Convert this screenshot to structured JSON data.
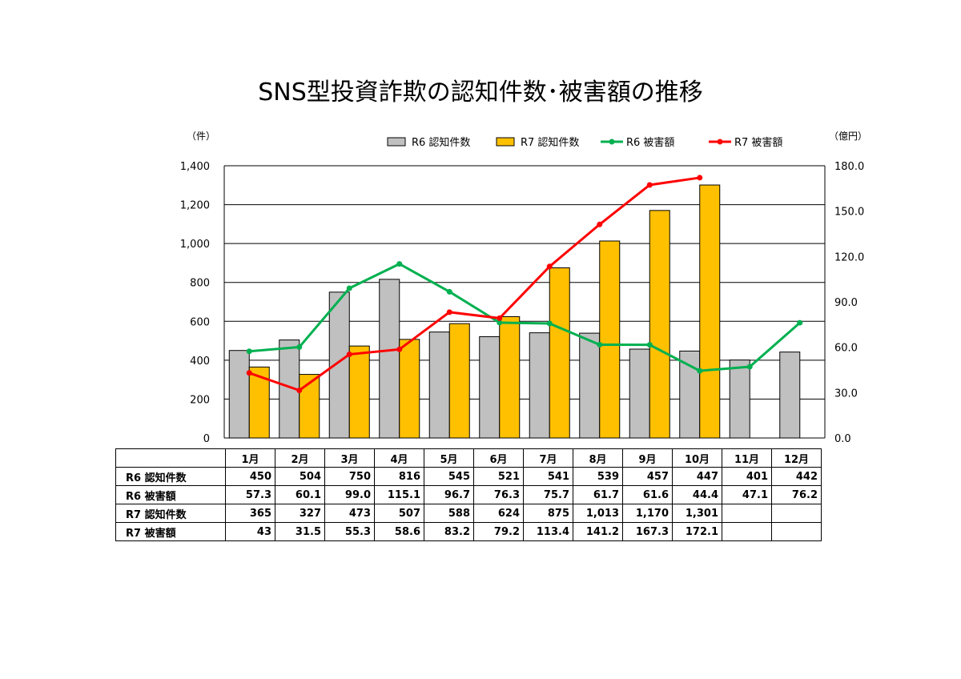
{
  "chart_data": {
    "type": "bar",
    "title": "SNS型投資詐欺の認知件数･被害額の推移",
    "categories": [
      "1月",
      "2月",
      "3月",
      "4月",
      "5月",
      "6月",
      "7月",
      "8月",
      "9月",
      "10月",
      "11月",
      "12月"
    ],
    "y_left": {
      "unit": "（件）",
      "ylim": [
        0,
        1400
      ],
      "ticks": [
        "0",
        "200",
        "400",
        "600",
        "800",
        "1,000",
        "1,200",
        "1,400"
      ]
    },
    "y_right": {
      "unit": "（億円）",
      "ylim": [
        0,
        180
      ],
      "ticks": [
        "0.0",
        "30.0",
        "60.0",
        "90.0",
        "120.0",
        "150.0",
        "180.0"
      ]
    },
    "grid": true,
    "legend": "top",
    "series": [
      {
        "name": "R6 認知件数",
        "kind": "bar",
        "axis": "left",
        "color": "#c0c0c0",
        "values": [
          450,
          504,
          750,
          816,
          545,
          521,
          541,
          539,
          457,
          447,
          401,
          442
        ]
      },
      {
        "name": "R7 認知件数",
        "kind": "bar",
        "axis": "left",
        "color": "#ffc000",
        "values": [
          365,
          327,
          473,
          507,
          588,
          624,
          875,
          1013,
          1170,
          1301,
          null,
          null
        ]
      },
      {
        "name": "R6 被害額",
        "kind": "line",
        "axis": "right",
        "color": "#00b050",
        "values": [
          57.3,
          60.1,
          99.0,
          115.1,
          96.7,
          76.3,
          75.7,
          61.7,
          61.6,
          44.4,
          47.1,
          76.2
        ]
      },
      {
        "name": "R7 被害額",
        "kind": "line",
        "axis": "right",
        "color": "#ff0000",
        "values": [
          43,
          31.5,
          55.3,
          58.6,
          83.2,
          79.2,
          113.4,
          141.2,
          167.3,
          172.1,
          null,
          null
        ]
      }
    ]
  },
  "table": {
    "headers": [
      "1月",
      "2月",
      "3月",
      "4月",
      "5月",
      "6月",
      "7月",
      "8月",
      "9月",
      "10月",
      "11月",
      "12月"
    ],
    "rows": [
      {
        "label": "R6 認知件数",
        "cells": [
          "450",
          "504",
          "750",
          "816",
          "545",
          "521",
          "541",
          "539",
          "457",
          "447",
          "401",
          "442"
        ]
      },
      {
        "label": "R6 被害額",
        "cells": [
          "57.3",
          "60.1",
          "99.0",
          "115.1",
          "96.7",
          "76.3",
          "75.7",
          "61.7",
          "61.6",
          "44.4",
          "47.1",
          "76.2"
        ]
      },
      {
        "label": "R7 認知件数",
        "cells": [
          "365",
          "327",
          "473",
          "507",
          "588",
          "624",
          "875",
          "1,013",
          "1,170",
          "1,301",
          "",
          ""
        ]
      },
      {
        "label": "R7 被害額",
        "cells": [
          "43",
          "31.5",
          "55.3",
          "58.6",
          "83.2",
          "79.2",
          "113.4",
          "141.2",
          "167.3",
          "172.1",
          "",
          ""
        ]
      }
    ]
  }
}
